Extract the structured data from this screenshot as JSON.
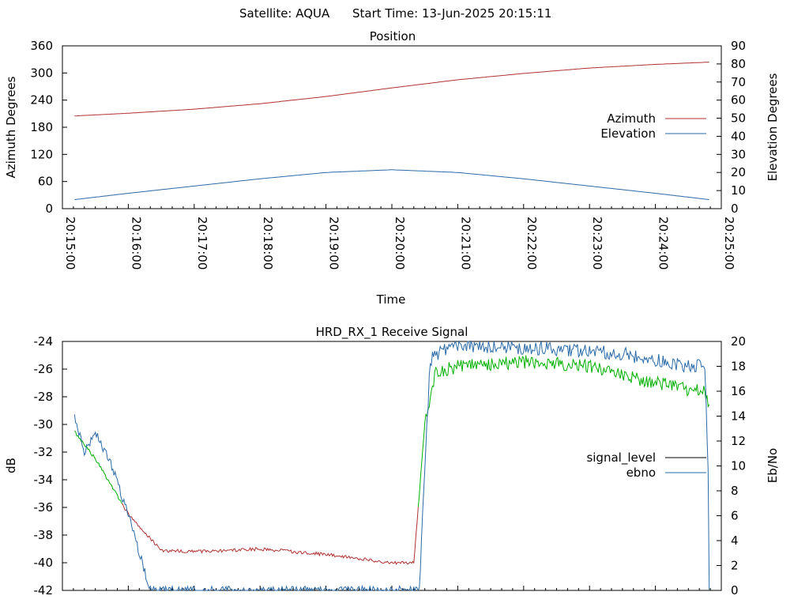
{
  "header": {
    "satellite": "Satellite: AQUA",
    "start_time": "Start Time: 13-Jun-2025 20:15:11"
  },
  "colors": {
    "azimuth": "#b03030",
    "elevation": "#2a6aa8",
    "signal_level": "#000000",
    "ebno": "#2a6aa8",
    "signal_red": "#b03030",
    "signal_green": "#00b000"
  },
  "chart_data": [
    {
      "type": "line",
      "title": "Position",
      "xlabel": "Time",
      "ylabel": "Azimuth Degrees",
      "y2label": "Elevation Degrees",
      "ylim": [
        0,
        360
      ],
      "y2lim": [
        0,
        90
      ],
      "yticks": [
        "0",
        "60",
        "120",
        "180",
        "240",
        "300",
        "360"
      ],
      "y2ticks": [
        "0",
        "10",
        "20",
        "30",
        "40",
        "50",
        "60",
        "70",
        "80",
        "90"
      ],
      "xticks": [
        "20:15:00",
        "20:16:00",
        "20:17:00",
        "20:18:00",
        "20:19:00",
        "20:20:00",
        "20:21:00",
        "20:22:00",
        "20:23:00",
        "20:24:00",
        "20:25:00"
      ],
      "xlim": [
        "20:15:00",
        "20:25:00"
      ],
      "legend_position": "right-middle",
      "series": [
        {
          "name": "Azimuth",
          "axis": "left",
          "x": [
            "20:15:11",
            "20:16:00",
            "20:17:00",
            "20:18:00",
            "20:19:00",
            "20:20:00",
            "20:21:00",
            "20:22:00",
            "20:23:00",
            "20:24:00",
            "20:24:49"
          ],
          "y": [
            205,
            211,
            220,
            232,
            248,
            267,
            285,
            299,
            311,
            319,
            324
          ]
        },
        {
          "name": "Elevation",
          "axis": "right",
          "x": [
            "20:15:11",
            "20:16:00",
            "20:17:00",
            "20:18:00",
            "20:19:00",
            "20:20:00",
            "20:21:00",
            "20:22:00",
            "20:23:00",
            "20:24:00",
            "20:24:49"
          ],
          "y": [
            5,
            8.5,
            12.5,
            16.5,
            20,
            21.5,
            20,
            16.5,
            12.5,
            8.5,
            5
          ]
        }
      ]
    },
    {
      "type": "line",
      "title": "HRD_RX_1 Receive Signal",
      "ylabel": "dB",
      "y2label": "Eb/No",
      "ylim": [
        -42,
        -24
      ],
      "y2lim": [
        0,
        20
      ],
      "yticks": [
        "-42",
        "-40",
        "-38",
        "-36",
        "-34",
        "-32",
        "-30",
        "-28",
        "-26",
        "-24"
      ],
      "y2ticks": [
        "0",
        "2",
        "4",
        "6",
        "8",
        "10",
        "12",
        "14",
        "16",
        "18",
        "20"
      ],
      "xlim": [
        "20:15:00",
        "20:25:00"
      ],
      "legend_position": "right-middle",
      "series": [
        {
          "name": "signal_level",
          "axis": "left",
          "x": [
            "20:15:11",
            "20:15:30",
            "20:16:00",
            "20:16:30",
            "20:17:00",
            "20:18:00",
            "20:19:00",
            "20:20:00",
            "20:20:20",
            "20:20:30",
            "20:20:40",
            "20:21:00",
            "20:22:00",
            "20:23:00",
            "20:23:30",
            "20:24:00",
            "20:24:30",
            "20:24:45",
            "20:24:49"
          ],
          "y": [
            -30.5,
            -32.5,
            -36.5,
            -39.1,
            -39.2,
            -39.0,
            -39.4,
            -40.0,
            -40.0,
            -30.0,
            -26.2,
            -25.8,
            -25.5,
            -25.8,
            -26.4,
            -27.0,
            -27.5,
            -27.5,
            -28.5
          ]
        },
        {
          "name": "ebno",
          "axis": "right",
          "x": [
            "20:15:11",
            "20:15:20",
            "20:15:30",
            "20:15:45",
            "20:16:00",
            "20:16:20",
            "20:20:25",
            "20:20:30",
            "20:20:35",
            "20:20:45",
            "20:21:00",
            "20:22:00",
            "20:23:00",
            "20:23:30",
            "20:24:00",
            "20:24:30",
            "20:24:45",
            "20:24:48",
            "20:24:49"
          ],
          "y": [
            14,
            11,
            12.8,
            10,
            6,
            0,
            0,
            10,
            18.5,
            19.3,
            19.7,
            19.5,
            19.2,
            19.0,
            18.5,
            18.0,
            18.0,
            10,
            0
          ]
        }
      ]
    }
  ]
}
